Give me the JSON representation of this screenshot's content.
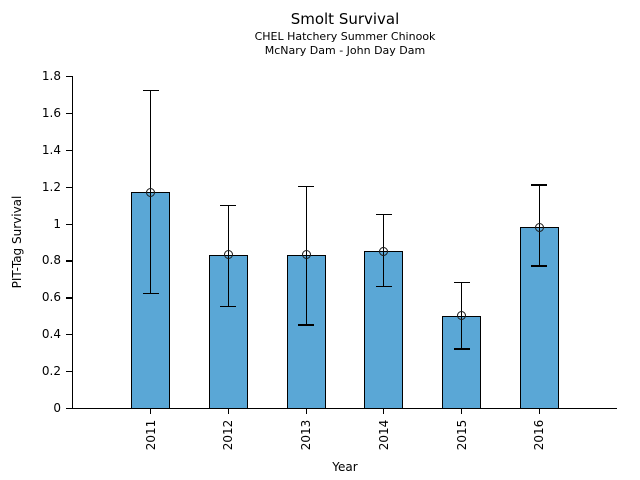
{
  "chart_data": {
    "type": "bar",
    "title": "Smolt Survival",
    "subtitle1": "CHEL Hatchery Summer Chinook",
    "subtitle2": "McNary Dam - John Day Dam",
    "xlabel": "Year",
    "ylabel": "PIT-Tag Survival",
    "categories": [
      "2011",
      "2012",
      "2013",
      "2014",
      "2015",
      "2016"
    ],
    "values": [
      1.17,
      0.83,
      0.83,
      0.85,
      0.5,
      0.98
    ],
    "error_low": [
      0.62,
      0.55,
      0.45,
      0.66,
      0.32,
      0.77
    ],
    "error_high": [
      1.72,
      1.1,
      1.2,
      1.05,
      0.68,
      1.21
    ],
    "ylim": [
      0,
      1.8
    ],
    "ytick_values": [
      0,
      0.2,
      0.4,
      0.6,
      0.8,
      1,
      1.2,
      1.4,
      1.6,
      1.8
    ],
    "ytick_labels": [
      "0",
      "0.2",
      "0.4",
      "0.6",
      "0.8",
      "1",
      "1.2",
      "1.4",
      "1.6",
      "1.8"
    ],
    "marker": "open-circle",
    "grid": false,
    "legend": null,
    "bar_color": "#5AA7D6",
    "bar_border_color": "#000000",
    "axis_color": "#000000",
    "background_color": "#FFFFFF"
  }
}
